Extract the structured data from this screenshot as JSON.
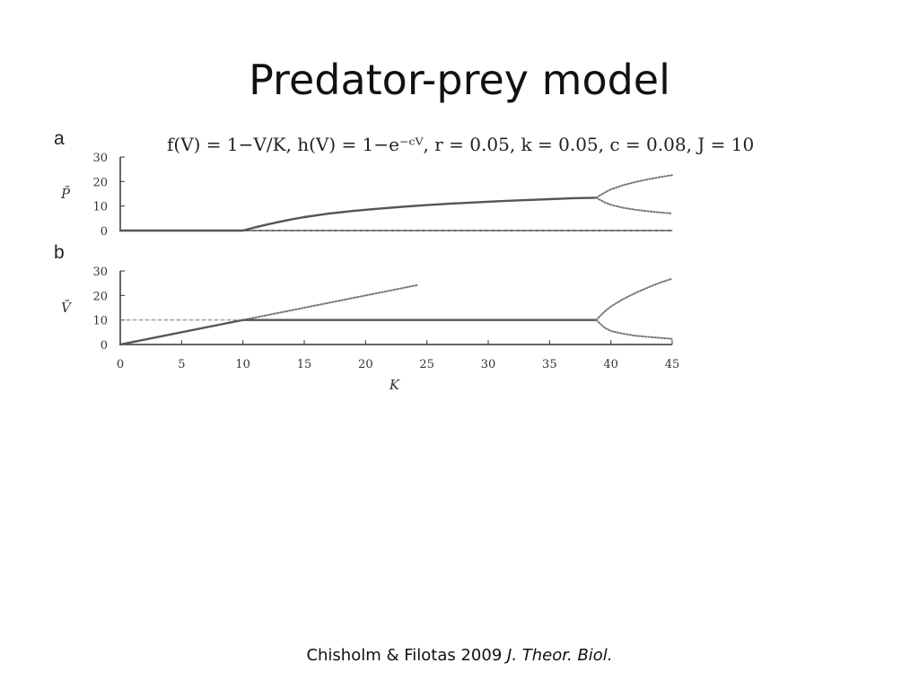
{
  "slide": {
    "title": "Predator-prey model",
    "citation_authors": "Chisholm & Filotas 2009 ",
    "citation_journal": "J. Theor. Biol."
  },
  "figure": {
    "equation": "f(V) = 1−V/K, h(V) = 1−e⁻ᶜⱽ, r = 0.05, k = 0.05, c = 0.08, J = 10",
    "panel_a_label": "a",
    "panel_b_label": "b"
  },
  "chart_data": [
    {
      "type": "line",
      "panel": "a",
      "ylabel": "P̄",
      "xlim": [
        0,
        45
      ],
      "ylim": [
        0,
        30
      ],
      "yticks": [
        0,
        10,
        20,
        30
      ],
      "series": [
        {
          "style": "solid",
          "x": [
            0,
            10
          ],
          "y": [
            0,
            0
          ]
        },
        {
          "style": "dashed",
          "x": [
            10,
            45
          ],
          "y": [
            0,
            0
          ]
        },
        {
          "style": "solid",
          "x": [
            10,
            11,
            12,
            13,
            14,
            15,
            17,
            19,
            21,
            23,
            25,
            27,
            29,
            31,
            33,
            35,
            37,
            38.8
          ],
          "y": [
            0,
            1.3,
            2.5,
            3.6,
            4.6,
            5.5,
            6.9,
            8,
            8.9,
            9.7,
            10.4,
            11,
            11.5,
            12,
            12.4,
            12.8,
            13.2,
            13.4
          ]
        },
        {
          "style": "dotted",
          "x": [
            38.8,
            39.5,
            40,
            41,
            42,
            43,
            44,
            45
          ],
          "y": [
            13.4,
            15.5,
            16.8,
            18.5,
            19.8,
            20.9,
            21.8,
            22.6
          ]
        },
        {
          "style": "dotted",
          "x": [
            38.8,
            39.5,
            40,
            41,
            42,
            43,
            44,
            45
          ],
          "y": [
            13.4,
            11.5,
            10.5,
            9.3,
            8.5,
            7.9,
            7.4,
            7
          ]
        }
      ]
    },
    {
      "type": "line",
      "panel": "b",
      "ylabel": "V̄",
      "xlabel": "K",
      "xlim": [
        0,
        45
      ],
      "ylim": [
        0,
        30
      ],
      "xticks": [
        0,
        5,
        10,
        15,
        20,
        25,
        30,
        35,
        40,
        45
      ],
      "yticks": [
        0,
        10,
        20,
        30
      ],
      "series": [
        {
          "style": "solid",
          "x": [
            0,
            10
          ],
          "y": [
            0,
            10
          ]
        },
        {
          "style": "dashed",
          "x": [
            0,
            10
          ],
          "y": [
            10,
            10
          ]
        },
        {
          "style": "dotted",
          "x": [
            10,
            24.3
          ],
          "y": [
            10,
            24.3
          ]
        },
        {
          "style": "solid",
          "x": [
            10,
            38.8
          ],
          "y": [
            10,
            10
          ]
        },
        {
          "style": "dotted",
          "x": [
            38.8,
            39.5,
            40,
            41,
            42,
            43,
            44,
            45
          ],
          "y": [
            10,
            13.5,
            15.5,
            18.5,
            21,
            23.2,
            25.2,
            26.8
          ]
        },
        {
          "style": "dotted",
          "x": [
            38.8,
            39.5,
            40,
            41,
            42,
            43,
            44,
            45
          ],
          "y": [
            10,
            6.8,
            5.5,
            4.4,
            3.6,
            3.1,
            2.7,
            2.3
          ]
        }
      ]
    }
  ]
}
